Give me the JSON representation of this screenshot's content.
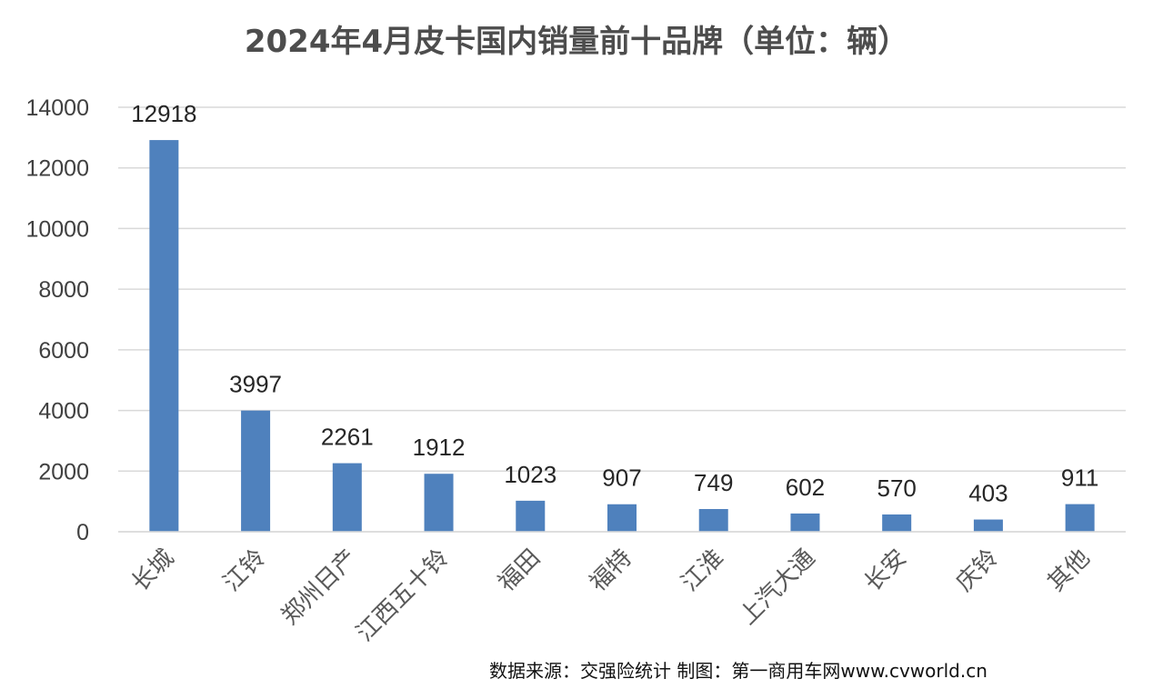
{
  "chart_data": {
    "type": "bar",
    "title": "2024年4月皮卡国内销量前十品牌（单位：辆）",
    "categories": [
      "长城",
      "江铃",
      "郑州日产",
      "江西五十铃",
      "福田",
      "福特",
      "江淮",
      "上汽大通",
      "长安",
      "庆铃",
      "其他"
    ],
    "series": [
      {
        "values": [
          12918,
          3997,
          2261,
          1912,
          1023,
          907,
          749,
          602,
          570,
          403,
          911
        ],
        "color": "#4f81bd"
      }
    ],
    "ylim": [
      0,
      14000
    ],
    "yticks": [
      0,
      2000,
      4000,
      6000,
      8000,
      10000,
      12000,
      14000
    ],
    "grid": true,
    "data_labels": true,
    "legend": "none"
  },
  "footer": {
    "source": "数据来源：交强险统计   制图：第一商用车网www.cvworld.cn"
  }
}
